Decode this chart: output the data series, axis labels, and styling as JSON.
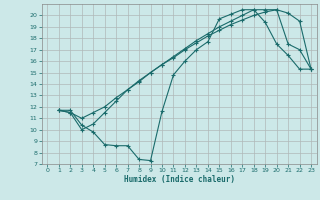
{
  "title": "",
  "xlabel": "Humidex (Indice chaleur)",
  "bg_color": "#cce8e8",
  "grid_color": "#b0c8c8",
  "line_color": "#1a6b6b",
  "xlim": [
    -0.5,
    23.5
  ],
  "ylim": [
    7,
    21
  ],
  "xticks": [
    0,
    1,
    2,
    3,
    4,
    5,
    6,
    7,
    8,
    9,
    10,
    11,
    12,
    13,
    14,
    15,
    16,
    17,
    18,
    19,
    20,
    21,
    22,
    23
  ],
  "yticks": [
    7,
    8,
    9,
    10,
    11,
    12,
    13,
    14,
    15,
    16,
    17,
    18,
    19,
    20
  ],
  "curve1_x": [
    1,
    2,
    3,
    4,
    5,
    6,
    7,
    8,
    9,
    10,
    11,
    12,
    13,
    14,
    15,
    16,
    17,
    18,
    19,
    20,
    21,
    22,
    23
  ],
  "curve1_y": [
    11.7,
    11.7,
    10.4,
    9.8,
    8.7,
    8.6,
    8.6,
    7.4,
    7.3,
    11.6,
    14.8,
    16.0,
    17.0,
    17.7,
    19.7,
    20.1,
    20.5,
    20.5,
    19.4,
    17.5,
    16.5,
    15.3,
    15.3
  ],
  "curve2_x": [
    1,
    2,
    3,
    4,
    5,
    6,
    7,
    8,
    9,
    10,
    11,
    12,
    13,
    14,
    15,
    16,
    17,
    18,
    19,
    20,
    21,
    22,
    23
  ],
  "curve2_y": [
    11.7,
    11.5,
    11.0,
    11.5,
    12.0,
    12.8,
    13.5,
    14.2,
    15.0,
    15.7,
    16.3,
    17.0,
    17.6,
    18.2,
    18.7,
    19.2,
    19.6,
    20.0,
    20.3,
    20.5,
    20.2,
    19.5,
    15.3
  ],
  "curve3_x": [
    1,
    2,
    3,
    4,
    5,
    6,
    7,
    8,
    9,
    10,
    11,
    12,
    13,
    14,
    15,
    16,
    17,
    18,
    19,
    20,
    21,
    22,
    23
  ],
  "curve3_y": [
    11.7,
    11.5,
    10.0,
    10.5,
    11.5,
    12.5,
    13.5,
    14.3,
    15.0,
    15.7,
    16.4,
    17.1,
    17.8,
    18.4,
    19.0,
    19.5,
    20.0,
    20.5,
    20.5,
    20.5,
    17.5,
    17.0,
    15.3
  ]
}
